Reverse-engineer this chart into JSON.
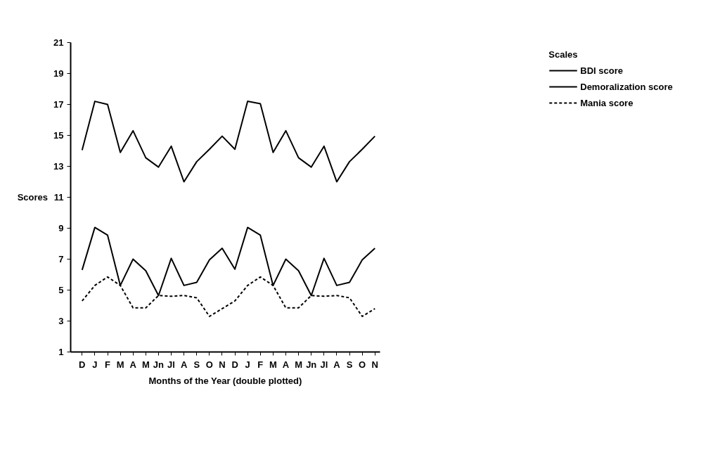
{
  "chart_data": {
    "type": "line",
    "xlabel": "Months of the Year (double plotted)",
    "ylabel": "Scores",
    "legend_title": "Scales",
    "categories": [
      "D",
      "J",
      "F",
      "M",
      "A",
      "M",
      "Jn",
      "Jl",
      "A",
      "S",
      "O",
      "N",
      "D",
      "J",
      "F",
      "M",
      "A",
      "M",
      "Jn",
      "Jl",
      "A",
      "S",
      "O",
      "N"
    ],
    "ylim": [
      1,
      21
    ],
    "yticks": [
      1,
      3,
      5,
      7,
      9,
      11,
      13,
      15,
      17,
      19,
      21
    ],
    "grid": false,
    "legend": "top right",
    "marker": "none",
    "series": [
      {
        "name": "BDI score",
        "color": "#000000",
        "line_style": "solid",
        "values": [
          14.05,
          17.2,
          17.0,
          13.9,
          15.3,
          13.55,
          12.95,
          14.3,
          12.0,
          13.3,
          14.1,
          14.95,
          14.1,
          17.2,
          17.05,
          13.9,
          15.3,
          13.55,
          12.95,
          14.3,
          12.0,
          13.3,
          14.1,
          14.95
        ]
      },
      {
        "name": "Demoralization score",
        "color": "#000000",
        "line_style": "solid",
        "values": [
          6.3,
          9.05,
          8.55,
          5.3,
          7.0,
          6.25,
          4.65,
          7.05,
          5.3,
          5.5,
          6.95,
          7.7,
          6.35,
          9.05,
          8.55,
          5.3,
          7.0,
          6.25,
          4.65,
          7.05,
          5.3,
          5.5,
          6.95,
          7.7
        ]
      },
      {
        "name": "Mania score",
        "color": "#000000",
        "line_style": "dashed",
        "values": [
          4.3,
          5.3,
          5.85,
          5.3,
          3.85,
          3.85,
          4.65,
          4.6,
          4.65,
          4.5,
          3.3,
          3.8,
          4.3,
          5.3,
          5.85,
          5.3,
          3.85,
          3.85,
          4.65,
          4.6,
          4.65,
          4.5,
          3.3,
          3.8
        ]
      }
    ]
  }
}
